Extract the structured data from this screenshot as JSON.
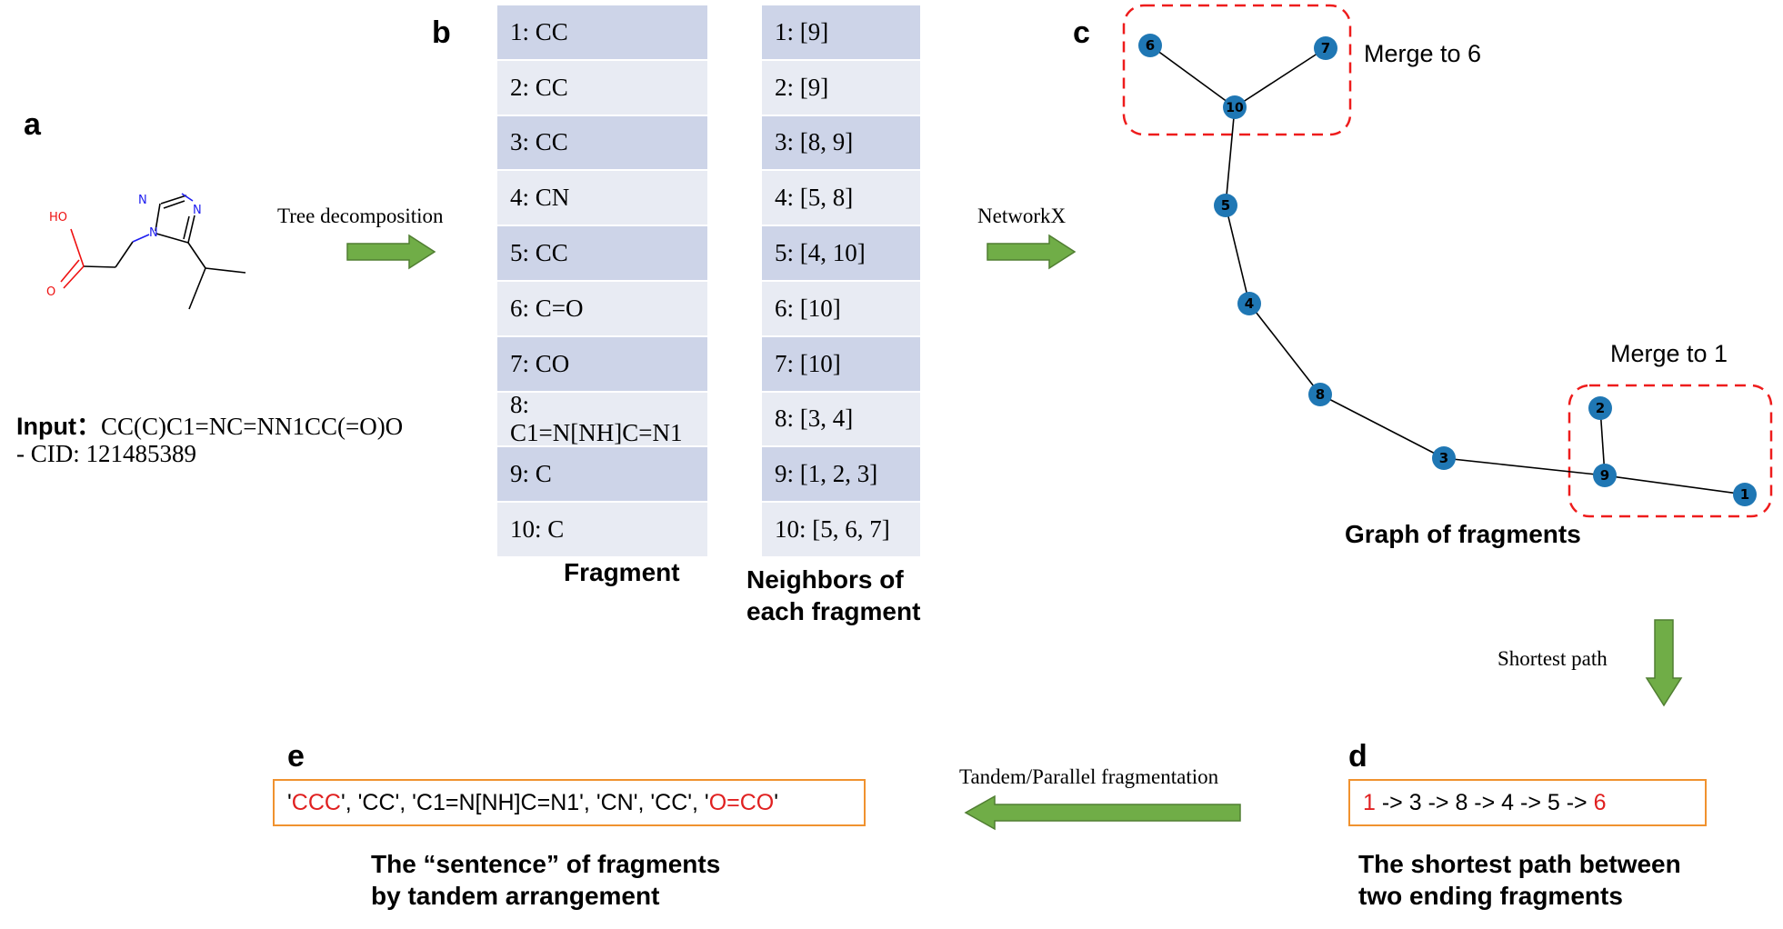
{
  "panels": {
    "a": "a",
    "b": "b",
    "c": "c",
    "d": "d",
    "e": "e"
  },
  "molecule": {
    "ho": "HO",
    "o": "O",
    "n1": "N",
    "n2": "N",
    "n3": "N"
  },
  "input": {
    "label": "Input：",
    "smiles": "CC(C)C1=NC=NN1CC(=O)O",
    "cid": "- CID: 121485389"
  },
  "arrows": {
    "tree": "Tree decomposition",
    "networkx": "NetworkX",
    "shortest": "Shortest path",
    "tandem": "Tandem/Parallel fragmentation"
  },
  "fragments": [
    "1: CC",
    "2: CC",
    "3: CC",
    "4: CN",
    "5: CC",
    "6: C=O",
    "7: CO",
    "8: C1=N[NH]C=N1",
    "9: C",
    "10: C"
  ],
  "neighbors": [
    "1: [9]",
    "2: [9]",
    "3: [8, 9]",
    "4: [5, 8]",
    "5: [4, 10]",
    "6: [10]",
    "7: [10]",
    "8: [3, 4]",
    "9: [1, 2, 3]",
    "10: [5, 6, 7]"
  ],
  "table_captions": {
    "fragment": "Fragment",
    "neighbors_1": "Neighbors of",
    "neighbors_2": "each fragment"
  },
  "graph": {
    "nodes": [
      "6",
      "7",
      "10",
      "5",
      "4",
      "8",
      "3",
      "2",
      "9",
      "1"
    ],
    "merge_top": "Merge to 6",
    "merge_bottom": "Merge to 1",
    "caption": "Graph of fragments",
    "node_color": "#1f77b4"
  },
  "path": {
    "start": "1",
    "middle": " -> 3 -> 8 -> 4 -> 5 -> ",
    "end": "6",
    "caption_1": "The shortest path between",
    "caption_2": "two ending fragments"
  },
  "sentence": {
    "q_open": "'",
    "first": "CCC",
    "middle": "', 'CC', 'C1=N[NH]C=N1', 'CN', 'CC', '",
    "last": "O=CO",
    "q_close": "'",
    "caption_1": "The “sentence” of fragments",
    "caption_2": "by tandem arrangement"
  },
  "colors": {
    "accent_red": "#e02020",
    "box_orange": "#f0922f",
    "arrow_green": "#70ad47",
    "row_dark": "#cdd4e8",
    "row_light": "#e8ebf3"
  }
}
